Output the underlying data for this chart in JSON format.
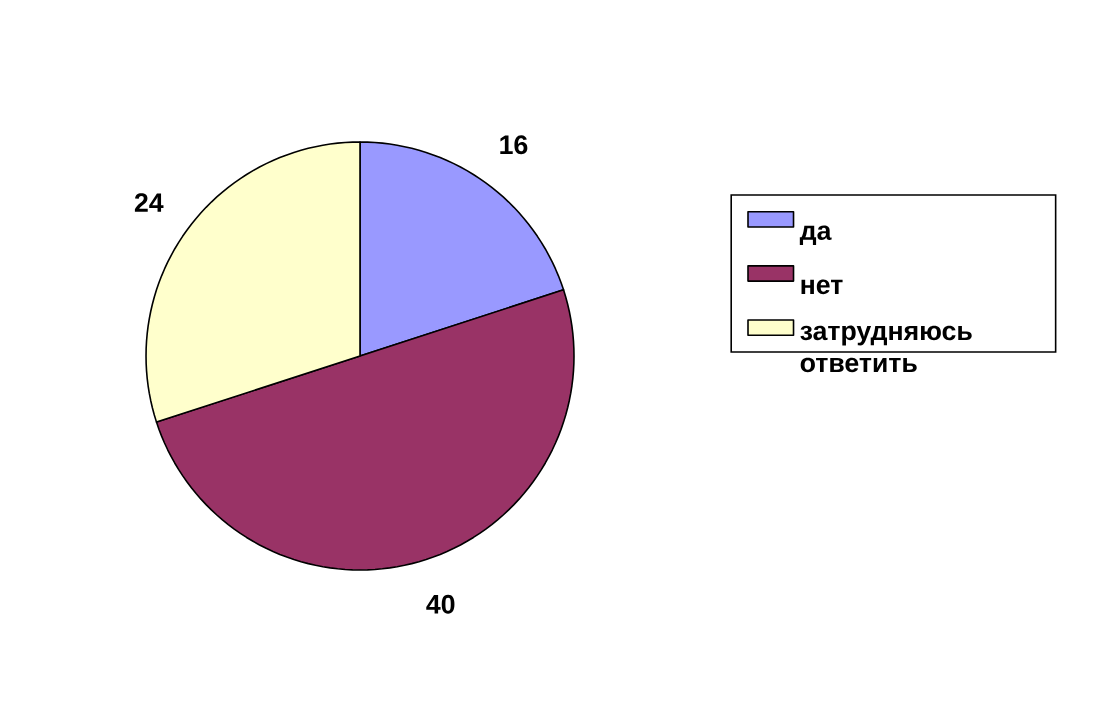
{
  "chart_data": {
    "type": "pie",
    "categories": [
      "да",
      "нет",
      "затрудняюсь ответить"
    ],
    "values": [
      16,
      40,
      24
    ],
    "colors": [
      "#9999ff",
      "#993366",
      "#ffffcc"
    ],
    "data_labels": true,
    "legend": "right"
  }
}
